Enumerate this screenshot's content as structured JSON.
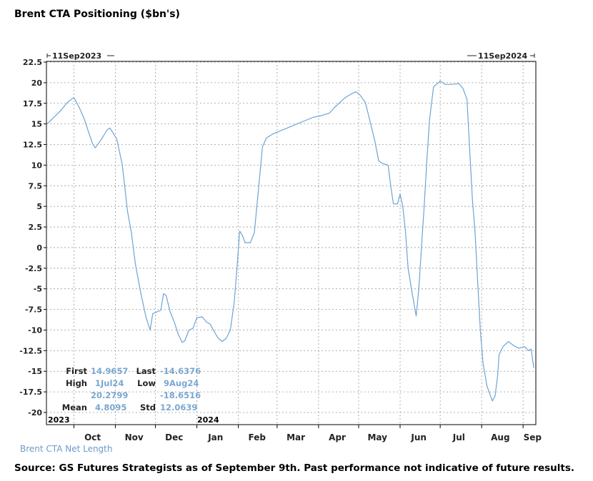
{
  "chart_data": {
    "type": "line",
    "title": "Brent CTA Positioning ($bn's)",
    "source": "Source: GS Futures Strategists as of September 9th. Past performance not indicative of future results.",
    "xlabel": "",
    "ylabel": "",
    "ylim": [
      -20,
      22.5
    ],
    "yticks": [
      "22.5",
      "20",
      "17.5",
      "15",
      "12.5",
      "10",
      "7.5",
      "5",
      "2.5",
      "0",
      "-2.5",
      "-5",
      "-7.5",
      "-10",
      "-12.5",
      "-15",
      "-17.5",
      "-20"
    ],
    "xtick_labels": [
      {
        "label": "Oct",
        "date": "2023-10-01"
      },
      {
        "label": "Nov",
        "date": "2023-11-01"
      },
      {
        "label": "Dec",
        "date": "2023-12-01"
      },
      {
        "label": "Jan",
        "date": "2024-01-01"
      },
      {
        "label": "Feb",
        "date": "2024-02-01"
      },
      {
        "label": "Mar",
        "date": "2024-03-01"
      },
      {
        "label": "Apr",
        "date": "2024-04-01"
      },
      {
        "label": "May",
        "date": "2024-05-01"
      },
      {
        "label": "Jun",
        "date": "2024-06-01"
      },
      {
        "label": "Jul",
        "date": "2024-07-01"
      },
      {
        "label": "Aug",
        "date": "2024-08-01"
      },
      {
        "label": "Sep",
        "date": "2024-09-01"
      }
    ],
    "year_labels": [
      {
        "label": "2023",
        "date": "2023-09-11"
      },
      {
        "label": "2024",
        "date": "2024-01-01"
      }
    ],
    "range_start_label": "11Sep2023",
    "range_end_label": "11Sep2024",
    "grid": true,
    "line_color": "#6fa3d2",
    "series": [
      {
        "name": "Brent CTA Net Length",
        "points": [
          [
            "2023-09-11",
            15.0
          ],
          [
            "2023-09-16",
            15.8
          ],
          [
            "2023-09-21",
            16.6
          ],
          [
            "2023-09-26",
            17.6
          ],
          [
            "2023-10-01",
            18.2
          ],
          [
            "2023-10-05",
            17.0
          ],
          [
            "2023-10-09",
            15.5
          ],
          [
            "2023-10-12",
            14.0
          ],
          [
            "2023-10-15",
            12.6
          ],
          [
            "2023-10-17",
            12.1
          ],
          [
            "2023-10-21",
            13.0
          ],
          [
            "2023-10-26",
            14.3
          ],
          [
            "2023-10-28",
            14.5
          ],
          [
            "2023-11-02",
            13.2
          ],
          [
            "2023-11-06",
            10.2
          ],
          [
            "2023-11-08",
            7.5
          ],
          [
            "2023-11-10",
            4.5
          ],
          [
            "2023-11-13",
            1.8
          ],
          [
            "2023-11-16",
            -2.0
          ],
          [
            "2023-11-20",
            -5.5
          ],
          [
            "2023-11-24",
            -8.5
          ],
          [
            "2023-11-27",
            -10.0
          ],
          [
            "2023-11-29",
            -8.0
          ],
          [
            "2023-12-02",
            -7.8
          ],
          [
            "2023-12-05",
            -7.6
          ],
          [
            "2023-12-07",
            -5.6
          ],
          [
            "2023-12-09",
            -5.8
          ],
          [
            "2023-12-12",
            -7.8
          ],
          [
            "2023-12-15",
            -9.0
          ],
          [
            "2023-12-18",
            -10.5
          ],
          [
            "2023-12-21",
            -11.5
          ],
          [
            "2023-12-23",
            -11.3
          ],
          [
            "2023-12-26",
            -10.0
          ],
          [
            "2023-12-29",
            -9.8
          ],
          [
            "2024-01-01",
            -8.5
          ],
          [
            "2024-01-05",
            -8.4
          ],
          [
            "2024-01-08",
            -9.0
          ],
          [
            "2024-01-11",
            -9.3
          ],
          [
            "2024-01-14",
            -10.2
          ],
          [
            "2024-01-17",
            -11.0
          ],
          [
            "2024-01-20",
            -11.4
          ],
          [
            "2024-01-23",
            -11.0
          ],
          [
            "2024-01-26",
            -10.0
          ],
          [
            "2024-01-29",
            -6.5
          ],
          [
            "2024-01-31",
            -2.5
          ],
          [
            "2024-02-02",
            2.0
          ],
          [
            "2024-02-04",
            1.5
          ],
          [
            "2024-02-06",
            0.6
          ],
          [
            "2024-02-10",
            0.6
          ],
          [
            "2024-02-13",
            1.8
          ],
          [
            "2024-02-16",
            7.0
          ],
          [
            "2024-02-19",
            12.2
          ],
          [
            "2024-02-22",
            13.3
          ],
          [
            "2024-02-27",
            13.8
          ],
          [
            "2024-03-04",
            14.2
          ],
          [
            "2024-03-10",
            14.6
          ],
          [
            "2024-03-16",
            15.0
          ],
          [
            "2024-03-22",
            15.4
          ],
          [
            "2024-03-28",
            15.8
          ],
          [
            "2024-04-03",
            16.0
          ],
          [
            "2024-04-09",
            16.3
          ],
          [
            "2024-04-13",
            17.0
          ],
          [
            "2024-04-17",
            17.6
          ],
          [
            "2024-04-21",
            18.2
          ],
          [
            "2024-04-25",
            18.6
          ],
          [
            "2024-04-29",
            18.9
          ],
          [
            "2024-05-02",
            18.5
          ],
          [
            "2024-05-06",
            17.6
          ],
          [
            "2024-05-10",
            15.0
          ],
          [
            "2024-05-13",
            13.0
          ],
          [
            "2024-05-16",
            10.5
          ],
          [
            "2024-05-19",
            10.2
          ],
          [
            "2024-05-23",
            10.0
          ],
          [
            "2024-05-25",
            7.5
          ],
          [
            "2024-05-27",
            5.3
          ],
          [
            "2024-05-30",
            5.3
          ],
          [
            "2024-06-01",
            6.5
          ],
          [
            "2024-06-03",
            5.0
          ],
          [
            "2024-06-05",
            2.0
          ],
          [
            "2024-06-07",
            -2.5
          ],
          [
            "2024-06-10",
            -5.5
          ],
          [
            "2024-06-13",
            -8.3
          ],
          [
            "2024-06-15",
            -5.0
          ],
          [
            "2024-06-17",
            0.0
          ],
          [
            "2024-06-19",
            5.0
          ],
          [
            "2024-06-21",
            10.5
          ],
          [
            "2024-06-23",
            15.5
          ],
          [
            "2024-06-26",
            19.5
          ],
          [
            "2024-07-01",
            20.2
          ],
          [
            "2024-07-05",
            19.8
          ],
          [
            "2024-07-10",
            19.8
          ],
          [
            "2024-07-15",
            19.9
          ],
          [
            "2024-07-18",
            19.3
          ],
          [
            "2024-07-21",
            18.0
          ],
          [
            "2024-07-23",
            12.0
          ],
          [
            "2024-07-25",
            6.0
          ],
          [
            "2024-07-27",
            2.0
          ],
          [
            "2024-07-29",
            -4.0
          ],
          [
            "2024-07-31",
            -10.0
          ],
          [
            "2024-08-02",
            -14.0
          ],
          [
            "2024-08-05",
            -16.8
          ],
          [
            "2024-08-09",
            -18.6
          ],
          [
            "2024-08-11",
            -18.0
          ],
          [
            "2024-08-13",
            -15.5
          ],
          [
            "2024-08-14",
            -13.0
          ],
          [
            "2024-08-17",
            -12.0
          ],
          [
            "2024-08-21",
            -11.4
          ],
          [
            "2024-08-25",
            -11.9
          ],
          [
            "2024-08-29",
            -12.2
          ],
          [
            "2024-09-02",
            -12.0
          ],
          [
            "2024-09-05",
            -12.5
          ],
          [
            "2024-09-07",
            -12.3
          ],
          [
            "2024-09-09",
            -14.6
          ]
        ]
      }
    ],
    "stats": {
      "first_label": "First",
      "first_value": "14.9657",
      "last_label": "Last",
      "last_value": "-14.6376",
      "high_label": "High",
      "high_date": "1Jul24",
      "high_value": "20.2799",
      "low_label": "Low",
      "low_date": "9Aug24",
      "low_value": "-18.6516",
      "mean_label": "Mean",
      "mean_value": "4.8095",
      "std_label": "Std",
      "std_value": "12.0639"
    }
  }
}
